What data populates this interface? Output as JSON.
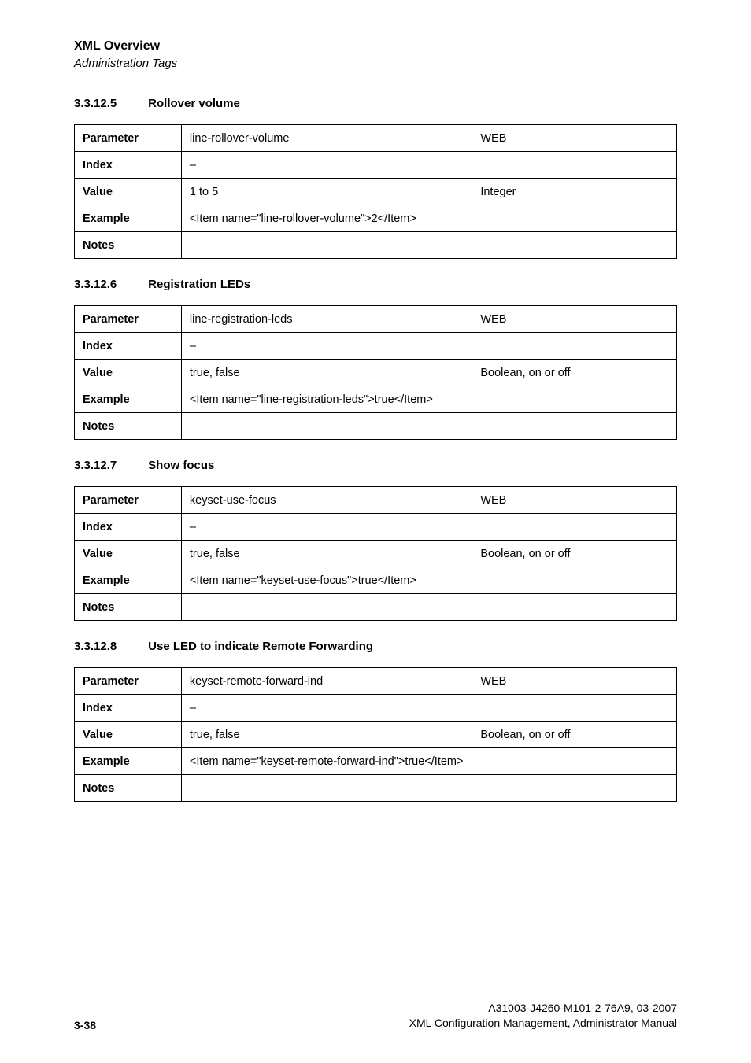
{
  "header": {
    "title": "XML Overview",
    "subtitle": "Administration Tags"
  },
  "sections": [
    {
      "number": "3.3.12.5",
      "title": "Rollover volume",
      "parameter": "line-rollover-volume",
      "source": "WEB",
      "index": "–",
      "value": "1 to 5",
      "type": "Integer",
      "example": "<Item name=\"line-rollover-volume\">2</Item>",
      "notes": ""
    },
    {
      "number": "3.3.12.6",
      "title": "Registration LEDs",
      "parameter": "line-registration-leds",
      "source": "WEB",
      "index": "–",
      "value": "true, false",
      "type": "Boolean, on or off",
      "example": "<Item name=\"line-registration-leds\">true</Item>",
      "notes": ""
    },
    {
      "number": "3.3.12.7",
      "title": "Show focus",
      "parameter": "keyset-use-focus",
      "source": "WEB",
      "index": "–",
      "value": "true, false",
      "type": "Boolean, on or off",
      "example": "<Item name=\"keyset-use-focus\">true</Item>",
      "notes": ""
    },
    {
      "number": "3.3.12.8",
      "title": "Use LED to indicate Remote Forwarding",
      "parameter": "keyset-remote-forward-ind",
      "source": "WEB",
      "index": "–",
      "value": "true, false",
      "type": "Boolean, on or off",
      "example": "<Item name=\"keyset-remote-forward-ind\">true</Item>",
      "notes": ""
    }
  ],
  "labels": {
    "parameter": "Parameter",
    "index": "Index",
    "value": "Value",
    "example": "Example",
    "notes": "Notes"
  },
  "footer": {
    "page": "3-38",
    "doc_id": "A31003-J4260-M101-2-76A9, 03-2007",
    "doc_title": "XML Configuration Management, Administrator Manual"
  }
}
